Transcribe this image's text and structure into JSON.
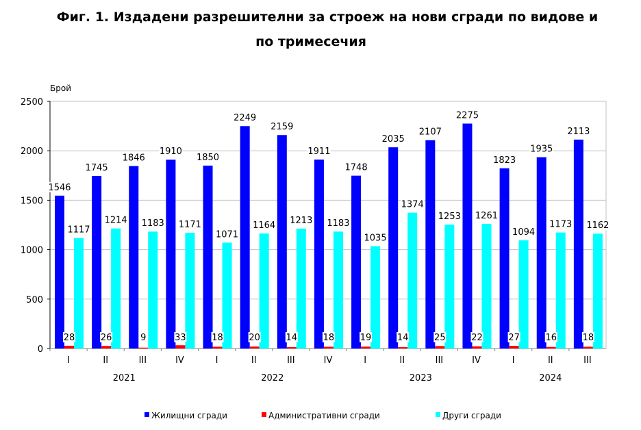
{
  "chart_data": {
    "type": "bar",
    "title_line1": "Фиг. 1. Издадени разрешителни за строеж на нови сгради по видове и",
    "title_line2": "по тримесечия",
    "ylabel": "Брой",
    "ylim": [
      0,
      2500
    ],
    "yticks": [
      "0",
      "500",
      "1000",
      "1500",
      "2000",
      "2500"
    ],
    "grid": true,
    "legend_position": "bottom",
    "categories": [
      "I",
      "II",
      "III",
      "IV",
      "I",
      "II",
      "III",
      "IV",
      "I",
      "II",
      "III",
      "IV",
      "I",
      "II",
      "III"
    ],
    "years": [
      {
        "label": "2021",
        "span": 4
      },
      {
        "label": "2022",
        "span": 4
      },
      {
        "label": "2023",
        "span": 4
      },
      {
        "label": "2024",
        "span": 3
      }
    ],
    "series": [
      {
        "name": "Жилищни сгради",
        "color": "#0000ff",
        "values": [
          1546,
          1745,
          1846,
          1910,
          1850,
          2249,
          2159,
          1911,
          1748,
          2035,
          2107,
          2275,
          1823,
          1935,
          2113
        ]
      },
      {
        "name": "Административни сгради",
        "color": "#ff0000",
        "values": [
          28,
          26,
          9,
          33,
          18,
          20,
          14,
          18,
          19,
          14,
          25,
          22,
          27,
          16,
          18
        ]
      },
      {
        "name": "Други сгради",
        "color": "#00ffff",
        "values": [
          1117,
          1214,
          1183,
          1171,
          1071,
          1164,
          1213,
          1183,
          1035,
          1374,
          1253,
          1261,
          1094,
          1173,
          1162
        ]
      }
    ]
  }
}
